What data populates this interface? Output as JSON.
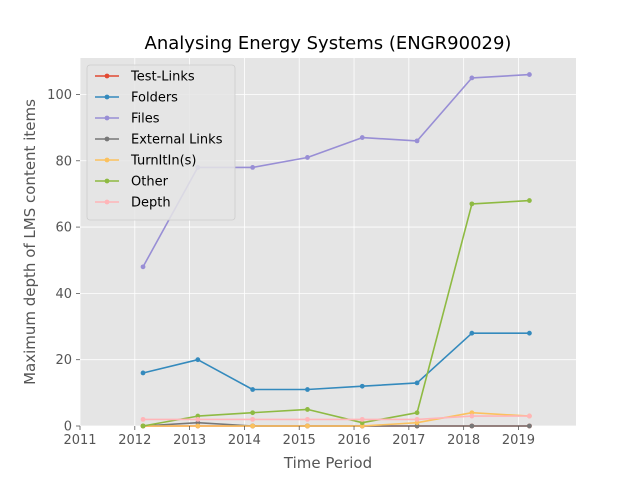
{
  "chart_data": {
    "type": "line",
    "title": "Analysing Energy Systems (ENGR90029)",
    "xlabel": "Time Period",
    "ylabel": "Maximum depth of LMS content items",
    "x": [
      2012.15,
      2013.15,
      2014.15,
      2015.15,
      2016.15,
      2017.15,
      2018.15,
      2019.2
    ],
    "xlim": [
      2011,
      2020.05
    ],
    "ylim": [
      0,
      111
    ],
    "xticks": [
      2011,
      2012,
      2013,
      2014,
      2015,
      2016,
      2017,
      2018,
      2019
    ],
    "xtick_labels": [
      "2011",
      "2012",
      "2013",
      "2014",
      "2015",
      "2016",
      "2017",
      "2018",
      "2019"
    ],
    "yticks": [
      0,
      20,
      40,
      60,
      80,
      100
    ],
    "ytick_labels": [
      "0",
      "20",
      "40",
      "60",
      "80",
      "100"
    ],
    "grid": true,
    "legend_position": "top-left",
    "series": [
      {
        "name": "Test-Links",
        "color": "#E24A33",
        "values": [
          0,
          0,
          0,
          0,
          0,
          0,
          0,
          0
        ]
      },
      {
        "name": "Folders",
        "color": "#348ABD",
        "values": [
          16,
          20,
          11,
          11,
          12,
          13,
          28,
          28
        ]
      },
      {
        "name": "Files",
        "color": "#988ED5",
        "values": [
          48,
          78,
          78,
          81,
          87,
          86,
          105,
          106
        ]
      },
      {
        "name": "External Links",
        "color": "#777777",
        "values": [
          0,
          1,
          0,
          0,
          0,
          0,
          0,
          0
        ]
      },
      {
        "name": "TurnItIn(s)",
        "color": "#FBC15E",
        "values": [
          0,
          0,
          0,
          0,
          0,
          1,
          4,
          3
        ]
      },
      {
        "name": "Other",
        "color": "#8EBA42",
        "values": [
          0,
          3,
          4,
          5,
          1,
          4,
          67,
          68
        ]
      },
      {
        "name": "Depth",
        "color": "#FFB5B8",
        "values": [
          2,
          2,
          2,
          2,
          2,
          2,
          3,
          3
        ]
      }
    ]
  },
  "colors": {
    "plot_background": "#E5E5E5",
    "grid": "#FFFFFF",
    "legend_background": "#E5E5E5",
    "legend_border": "#CCCCCC"
  }
}
